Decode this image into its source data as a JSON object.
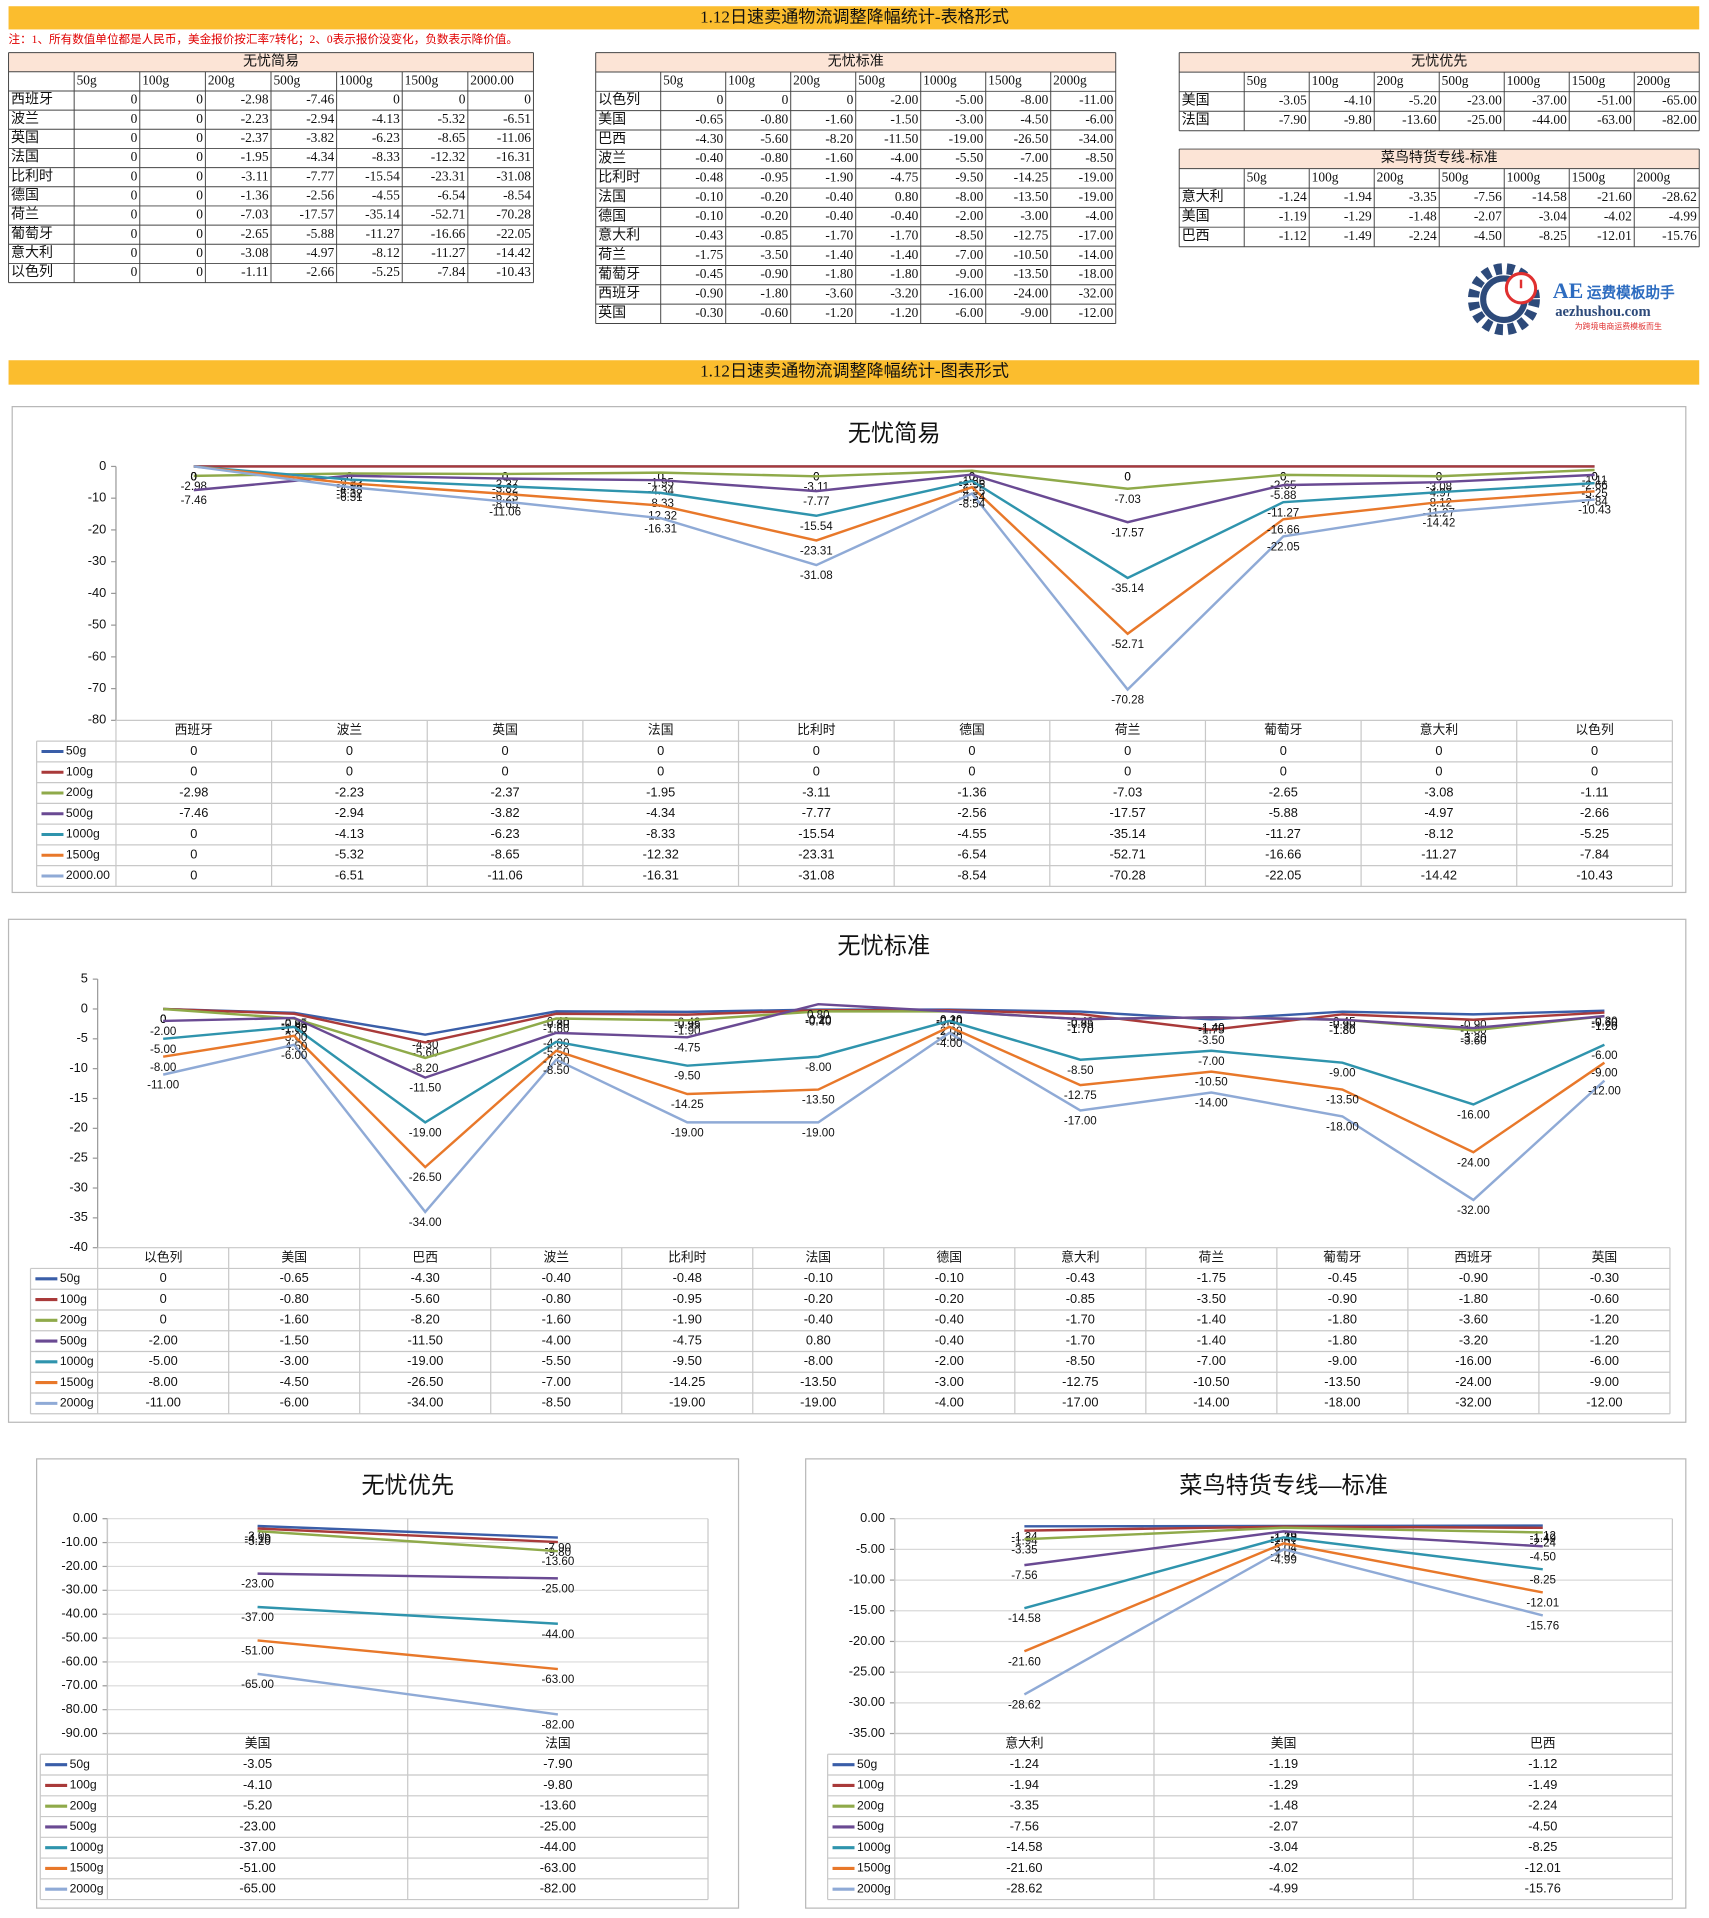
{
  "header": {
    "title": "1.12日速卖通物流调整降幅统计-表格形式",
    "note": "注：1、所有数值单位都是人民币，美金报价按汇率7转化；2、0表示报价没变化，负数表示降价值。",
    "chart_section_title": "1.12日速卖通物流调整降幅统计-图表形式"
  },
  "logo": {
    "brand": "AE",
    "name": "运费模板助手",
    "url": "aezhushou.com",
    "slogan": "为跨境电商运费模板而生"
  },
  "tables": [
    {
      "title": "无忧简易",
      "columns": [
        "50g",
        "100g",
        "200g",
        "500g",
        "1000g",
        "1500g",
        "2000.00"
      ],
      "rows": [
        [
          "西班牙",
          "0",
          "0",
          "-2.98",
          "-7.46",
          "0",
          "0",
          "0"
        ],
        [
          "波兰",
          "0",
          "0",
          "-2.23",
          "-2.94",
          "-4.13",
          "-5.32",
          "-6.51"
        ],
        [
          "英国",
          "0",
          "0",
          "-2.37",
          "-3.82",
          "-6.23",
          "-8.65",
          "-11.06"
        ],
        [
          "法国",
          "0",
          "0",
          "-1.95",
          "-4.34",
          "-8.33",
          "-12.32",
          "-16.31"
        ],
        [
          "比利时",
          "0",
          "0",
          "-3.11",
          "-7.77",
          "-15.54",
          "-23.31",
          "-31.08"
        ],
        [
          "德国",
          "0",
          "0",
          "-1.36",
          "-2.56",
          "-4.55",
          "-6.54",
          "-8.54"
        ],
        [
          "荷兰",
          "0",
          "0",
          "-7.03",
          "-17.57",
          "-35.14",
          "-52.71",
          "-70.28"
        ],
        [
          "葡萄牙",
          "0",
          "0",
          "-2.65",
          "-5.88",
          "-11.27",
          "-16.66",
          "-22.05"
        ],
        [
          "意大利",
          "0",
          "0",
          "-3.08",
          "-4.97",
          "-8.12",
          "-11.27",
          "-14.42"
        ],
        [
          "以色列",
          "0",
          "0",
          "-1.11",
          "-2.66",
          "-5.25",
          "-7.84",
          "-10.43"
        ]
      ]
    },
    {
      "title": "无忧标准",
      "columns": [
        "50g",
        "100g",
        "200g",
        "500g",
        "1000g",
        "1500g",
        "2000g"
      ],
      "rows": [
        [
          "以色列",
          "0",
          "0",
          "0",
          "-2.00",
          "-5.00",
          "-8.00",
          "-11.00"
        ],
        [
          "美国",
          "-0.65",
          "-0.80",
          "-1.60",
          "-1.50",
          "-3.00",
          "-4.50",
          "-6.00"
        ],
        [
          "巴西",
          "-4.30",
          "-5.60",
          "-8.20",
          "-11.50",
          "-19.00",
          "-26.50",
          "-34.00"
        ],
        [
          "波兰",
          "-0.40",
          "-0.80",
          "-1.60",
          "-4.00",
          "-5.50",
          "-7.00",
          "-8.50"
        ],
        [
          "比利时",
          "-0.48",
          "-0.95",
          "-1.90",
          "-4.75",
          "-9.50",
          "-14.25",
          "-19.00"
        ],
        [
          "法国",
          "-0.10",
          "-0.20",
          "-0.40",
          "0.80",
          "-8.00",
          "-13.50",
          "-19.00"
        ],
        [
          "德国",
          "-0.10",
          "-0.20",
          "-0.40",
          "-0.40",
          "-2.00",
          "-3.00",
          "-4.00"
        ],
        [
          "意大利",
          "-0.43",
          "-0.85",
          "-1.70",
          "-1.70",
          "-8.50",
          "-12.75",
          "-17.00"
        ],
        [
          "荷兰",
          "-1.75",
          "-3.50",
          "-1.40",
          "-1.40",
          "-7.00",
          "-10.50",
          "-14.00"
        ],
        [
          "葡萄牙",
          "-0.45",
          "-0.90",
          "-1.80",
          "-1.80",
          "-9.00",
          "-13.50",
          "-18.00"
        ],
        [
          "西班牙",
          "-0.90",
          "-1.80",
          "-3.60",
          "-3.20",
          "-16.00",
          "-24.00",
          "-32.00"
        ],
        [
          "英国",
          "-0.30",
          "-0.60",
          "-1.20",
          "-1.20",
          "-6.00",
          "-9.00",
          "-12.00"
        ]
      ]
    },
    {
      "title": "无忧优先",
      "columns": [
        "50g",
        "100g",
        "200g",
        "500g",
        "1000g",
        "1500g",
        "2000g"
      ],
      "rows": [
        [
          "美国",
          "-3.05",
          "-4.10",
          "-5.20",
          "-23.00",
          "-37.00",
          "-51.00",
          "-65.00"
        ],
        [
          "法国",
          "-7.90",
          "-9.80",
          "-13.60",
          "-25.00",
          "-44.00",
          "-63.00",
          "-82.00"
        ]
      ]
    },
    {
      "title": "菜鸟特货专线-标准",
      "columns": [
        "50g",
        "100g",
        "200g",
        "500g",
        "1000g",
        "1500g",
        "2000g"
      ],
      "rows": [
        [
          "意大利",
          "-1.24",
          "-1.94",
          "-3.35",
          "-7.56",
          "-14.58",
          "-21.60",
          "-28.62"
        ],
        [
          "美国",
          "-1.19",
          "-1.29",
          "-1.48",
          "-2.07",
          "-3.04",
          "-4.02",
          "-4.99"
        ],
        [
          "巴西",
          "-1.12",
          "-1.49",
          "-2.24",
          "-4.50",
          "-8.25",
          "-12.01",
          "-15.76"
        ]
      ]
    }
  ],
  "chart_data": [
    {
      "type": "line",
      "title": "无忧简易",
      "grid": false,
      "categories": [
        "西班牙",
        "波兰",
        "英国",
        "法国",
        "比利时",
        "德国",
        "荷兰",
        "葡萄牙",
        "意大利",
        "以色列"
      ],
      "ylim": [
        -80,
        0
      ],
      "yticks": [
        0,
        -10,
        -20,
        -30,
        -40,
        -50,
        -60,
        -70,
        -80
      ],
      "series": [
        {
          "name": "50g",
          "color": "#3a5ea8",
          "values": [
            0,
            0,
            0,
            0,
            0,
            0,
            0,
            0,
            0,
            0
          ]
        },
        {
          "name": "100g",
          "color": "#a93a3a",
          "values": [
            0,
            0,
            0,
            0,
            0,
            0,
            0,
            0,
            0,
            0
          ]
        },
        {
          "name": "200g",
          "color": "#8faa4a",
          "values": [
            -2.98,
            -2.23,
            -2.37,
            -1.95,
            -3.11,
            -1.36,
            -7.03,
            -2.65,
            -3.08,
            -1.11
          ]
        },
        {
          "name": "500g",
          "color": "#6a4a93",
          "values": [
            -7.46,
            -2.94,
            -3.82,
            -4.34,
            -7.77,
            -2.56,
            -17.57,
            -5.88,
            -4.97,
            -2.66
          ]
        },
        {
          "name": "1000g",
          "color": "#2f94ad",
          "values": [
            0,
            -4.13,
            -6.23,
            -8.33,
            -15.54,
            -4.55,
            -35.14,
            -11.27,
            -8.12,
            -5.25
          ]
        },
        {
          "name": "1500g",
          "color": "#e8782a",
          "values": [
            0,
            -5.32,
            -8.65,
            -12.32,
            -23.31,
            -6.54,
            -52.71,
            -16.66,
            -11.27,
            -7.84
          ]
        },
        {
          "name": "2000.00",
          "color": "#8faad6",
          "values": [
            0,
            -6.51,
            -11.06,
            -16.31,
            -31.08,
            -8.54,
            -70.28,
            -22.05,
            -14.42,
            -10.43
          ]
        }
      ]
    },
    {
      "type": "line",
      "title": "无忧标准",
      "grid": false,
      "categories": [
        "以色列",
        "美国",
        "巴西",
        "波兰",
        "比利时",
        "法国",
        "德国",
        "意大利",
        "荷兰",
        "葡萄牙",
        "西班牙",
        "英国"
      ],
      "ylim": [
        -40,
        5
      ],
      "yticks": [
        5,
        0,
        -5,
        -10,
        -15,
        -20,
        -25,
        -30,
        -35,
        -40
      ],
      "series": [
        {
          "name": "50g",
          "color": "#3a5ea8",
          "values": [
            0,
            -0.65,
            -4.3,
            -0.4,
            -0.48,
            -0.1,
            -0.1,
            -0.43,
            -1.75,
            -0.45,
            -0.9,
            -0.3
          ],
          "value_labels": [
            "0",
            "-0.65",
            "-4.30",
            "-0.40",
            "-0.48",
            "-0.10",
            "-0.10",
            "-0.43",
            "-1.75",
            "-0.45",
            "-0.90",
            "-0.30"
          ]
        },
        {
          "name": "100g",
          "color": "#a93a3a",
          "values": [
            0,
            -0.8,
            -5.6,
            -0.8,
            -0.95,
            -0.2,
            -0.2,
            -0.85,
            -3.5,
            -0.9,
            -1.8,
            -0.6
          ],
          "value_labels": [
            "0",
            "-0.80",
            "-5.60",
            "-0.80",
            "-0.95",
            "-0.20",
            "-0.20",
            "-0.85",
            "-3.50",
            "-0.90",
            "-1.80",
            "-0.60"
          ]
        },
        {
          "name": "200g",
          "color": "#8faa4a",
          "values": [
            0,
            -1.6,
            -8.2,
            -1.6,
            -1.9,
            -0.4,
            -0.4,
            -1.7,
            -1.4,
            -1.8,
            -3.6,
            -1.2
          ],
          "value_labels": [
            "0",
            "-1.60",
            "-8.20",
            "-1.60",
            "-1.90",
            "-0.40",
            "-0.40",
            "-1.70",
            "-1.40",
            "-1.80",
            "-3.60",
            "-1.20"
          ]
        },
        {
          "name": "500g",
          "color": "#6a4a93",
          "values": [
            -2,
            -1.5,
            -11.5,
            -4,
            -4.75,
            0.8,
            -0.4,
            -1.7,
            -1.4,
            -1.8,
            -3.2,
            -1.2
          ],
          "value_labels": [
            "-2.00",
            "-1.50",
            "-11.50",
            "-4.00",
            "-4.75",
            "0.80",
            "-0.40",
            "-1.70",
            "-1.40",
            "-1.80",
            "-3.20",
            "-1.20"
          ]
        },
        {
          "name": "1000g",
          "color": "#2f94ad",
          "values": [
            -5,
            -3,
            -19,
            -5.5,
            -9.5,
            -8,
            -2,
            -8.5,
            -7,
            -9,
            -16,
            -6
          ],
          "value_labels": [
            "-5.00",
            "-3.00",
            "-19.00",
            "-5.50",
            "-9.50",
            "-8.00",
            "-2.00",
            "-8.50",
            "-7.00",
            "-9.00",
            "-16.00",
            "-6.00"
          ]
        },
        {
          "name": "1500g",
          "color": "#e8782a",
          "values": [
            -8,
            -4.5,
            -26.5,
            -7,
            -14.25,
            -13.5,
            -3,
            -12.75,
            -10.5,
            -13.5,
            -24,
            -9
          ],
          "value_labels": [
            "-8.00",
            "-4.50",
            "-26.50",
            "-7.00",
            "-14.25",
            "-13.50",
            "-3.00",
            "-12.75",
            "-10.50",
            "-13.50",
            "-24.00",
            "-9.00"
          ]
        },
        {
          "name": "2000g",
          "color": "#8faad6",
          "values": [
            -11,
            -6,
            -34,
            -8.5,
            -19,
            -19,
            -4,
            -17,
            -14,
            -18,
            -32,
            -12
          ],
          "value_labels": [
            "-11.00",
            "-6.00",
            "-34.00",
            "-8.50",
            "-19.00",
            "-19.00",
            "-4.00",
            "-17.00",
            "-14.00",
            "-18.00",
            "-32.00",
            "-12.00"
          ]
        }
      ]
    },
    {
      "type": "line",
      "title": "无忧优先",
      "grid": true,
      "categories": [
        "美国",
        "法国"
      ],
      "ylim": [
        -90,
        0
      ],
      "yticks": [
        {
          "value": 0,
          "label": "0.00"
        },
        {
          "value": -10,
          "label": "-10.00"
        },
        {
          "value": -20,
          "label": "-20.00"
        },
        {
          "value": -30,
          "label": "-30.00"
        },
        {
          "value": -40,
          "label": "-40.00"
        },
        {
          "value": -50,
          "label": "-50.00"
        },
        {
          "value": -60,
          "label": "-60.00"
        },
        {
          "value": -70,
          "label": "-70.00"
        },
        {
          "value": -80,
          "label": "-80.00"
        },
        {
          "value": -90,
          "label": "-90.00"
        }
      ],
      "series": [
        {
          "name": "50g",
          "color": "#3a5ea8",
          "values": [
            -3.05,
            -7.9
          ],
          "value_labels": [
            "-3.05",
            "-7.90"
          ]
        },
        {
          "name": "100g",
          "color": "#a93a3a",
          "values": [
            -4.1,
            -9.8
          ],
          "value_labels": [
            "-4.10",
            "-9.80"
          ]
        },
        {
          "name": "200g",
          "color": "#8faa4a",
          "values": [
            -5.2,
            -13.6
          ],
          "value_labels": [
            "-5.20",
            "-13.60"
          ]
        },
        {
          "name": "500g",
          "color": "#6a4a93",
          "values": [
            -23,
            -25
          ],
          "value_labels": [
            "-23.00",
            "-25.00"
          ]
        },
        {
          "name": "1000g",
          "color": "#2f94ad",
          "values": [
            -37,
            -44
          ],
          "value_labels": [
            "-37.00",
            "-44.00"
          ]
        },
        {
          "name": "1500g",
          "color": "#e8782a",
          "values": [
            -51,
            -63
          ],
          "value_labels": [
            "-51.00",
            "-63.00"
          ]
        },
        {
          "name": "2000g",
          "color": "#8faad6",
          "values": [
            -65,
            -82
          ],
          "value_labels": [
            "-65.00",
            "-82.00"
          ]
        }
      ]
    },
    {
      "type": "line",
      "title": "菜鸟特货专线—标准",
      "grid": true,
      "categories": [
        "意大利",
        "美国",
        "巴西"
      ],
      "ylim": [
        -35,
        0
      ],
      "yticks": [
        {
          "value": 0,
          "label": "0.00"
        },
        {
          "value": -5,
          "label": "-5.00"
        },
        {
          "value": -10,
          "label": "-10.00"
        },
        {
          "value": -15,
          "label": "-15.00"
        },
        {
          "value": -20,
          "label": "-20.00"
        },
        {
          "value": -25,
          "label": "-25.00"
        },
        {
          "value": -30,
          "label": "-30.00"
        },
        {
          "value": -35,
          "label": "-35.00"
        }
      ],
      "series": [
        {
          "name": "50g",
          "color": "#3a5ea8",
          "values": [
            -1.24,
            -1.19,
            -1.12
          ],
          "value_labels": [
            "-1.24",
            "-1.19",
            "-1.12"
          ]
        },
        {
          "name": "100g",
          "color": "#a93a3a",
          "values": [
            -1.94,
            -1.29,
            -1.49
          ],
          "value_labels": [
            "-1.94",
            "-1.29",
            "-1.49"
          ]
        },
        {
          "name": "200g",
          "color": "#8faa4a",
          "values": [
            -3.35,
            -1.48,
            -2.24
          ],
          "value_labels": [
            "-3.35",
            "-1.48",
            "-2.24"
          ]
        },
        {
          "name": "500g",
          "color": "#6a4a93",
          "values": [
            -7.56,
            -2.07,
            -4.5
          ],
          "value_labels": [
            "-7.56",
            "-2.07",
            "-4.50"
          ]
        },
        {
          "name": "1000g",
          "color": "#2f94ad",
          "values": [
            -14.58,
            -3.04,
            -8.25
          ],
          "value_labels": [
            "-14.58",
            "-3.04",
            "-8.25"
          ]
        },
        {
          "name": "1500g",
          "color": "#e8782a",
          "values": [
            -21.6,
            -4.02,
            -12.01
          ],
          "value_labels": [
            "-21.60",
            "-4.02",
            "-12.01"
          ]
        },
        {
          "name": "2000g",
          "color": "#8faad6",
          "values": [
            -28.62,
            -4.99,
            -15.76
          ],
          "value_labels": [
            "-28.62",
            "-4.99",
            "-15.76"
          ]
        }
      ]
    }
  ]
}
